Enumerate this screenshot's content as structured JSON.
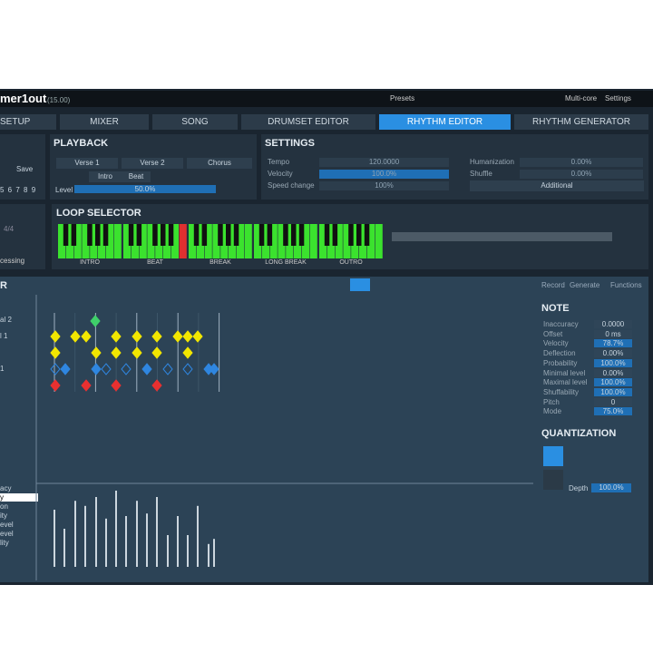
{
  "header": {
    "title": "mer1out",
    "version": "(15.00)",
    "presets": "Presets",
    "multicore": "Multi-core",
    "settings": "Settings"
  },
  "tabs": [
    "SETUP",
    "MIXER",
    "SONG",
    "DRUMSET EDITOR",
    "RHYTHM EDITOR",
    "RHYTHM GENERATOR"
  ],
  "left_panel": {
    "save": "Save",
    "numbers": "5 6 7 8 9",
    "time_signature": "4/4",
    "processing": "cessing"
  },
  "playback": {
    "title": "PLAYBACK",
    "buttons": [
      "Verse 1",
      "Verse 2",
      "Chorus",
      "Intro",
      "Beat"
    ],
    "level_label": "Level",
    "level_value": "50.0%"
  },
  "settings": {
    "title": "SETTINGS",
    "rows": [
      {
        "label": "Tempo",
        "value": "120.0000"
      },
      {
        "label": "Velocity",
        "value": "100.0%"
      },
      {
        "label": "Speed change",
        "value": "100%"
      },
      {
        "label": "Humanization",
        "value": "0.00%"
      },
      {
        "label": "Shuffle",
        "value": "0.00%"
      }
    ],
    "additional": "Additional"
  },
  "loop_selector": {
    "title": "LOOP SELECTOR",
    "loops": [
      "INTRO",
      "BEAT",
      "BREAK",
      "LONG BREAK",
      "OUTRO"
    ]
  },
  "editor": {
    "title": "R",
    "track_labels": [
      "al 2",
      "l 1",
      "1"
    ],
    "toolbar": [
      "Record",
      "Generate",
      "Functions"
    ],
    "param_labels": [
      "acy",
      "y",
      "on",
      "ity",
      "evel",
      "evel",
      "lity"
    ]
  },
  "note": {
    "title": "NOTE",
    "params": [
      {
        "label": "Inaccuracy",
        "value": "0.0000"
      },
      {
        "label": "Offset",
        "value": "0 ms"
      },
      {
        "label": "Velocity",
        "value": "78.7%"
      },
      {
        "label": "Deflection",
        "value": "0.00%"
      },
      {
        "label": "Probability",
        "value": "100.0%"
      },
      {
        "label": "Minimal level",
        "value": "0.00%"
      },
      {
        "label": "Maximal level",
        "value": "100.0%"
      },
      {
        "label": "Shuffability",
        "value": "100.0%"
      },
      {
        "label": "Pitch",
        "value": "0"
      },
      {
        "label": "Mode",
        "value": "75.0%"
      }
    ]
  },
  "quantization": {
    "title": "QUANTIZATION",
    "depth_label": "Depth",
    "depth_value": "100.0%"
  }
}
